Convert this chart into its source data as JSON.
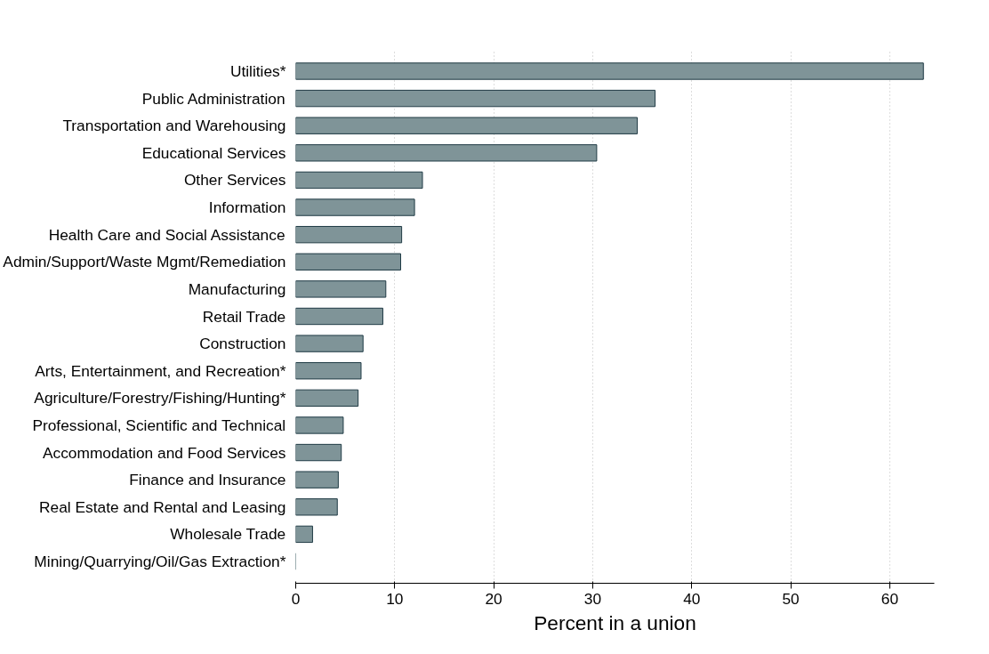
{
  "chart_data": {
    "type": "bar",
    "orientation": "horizontal",
    "xlabel": "Percent in a union",
    "categories": [
      "Utilities*",
      "Public Administration",
      "Transportation and Warehousing",
      "Educational Services",
      "Other Services",
      "Information",
      "Health Care and Social Assistance",
      "Admin/Support/Waste Mgmt/Remediation",
      "Manufacturing",
      "Retail Trade",
      "Construction",
      "Arts, Entertainment, and Recreation*",
      "Agriculture/Forestry/Fishing/Hunting*",
      "Professional, Scientific and Technical",
      "Accommodation and Food Services",
      "Finance and Insurance",
      "Real Estate and Rental and Leasing",
      "Wholesale Trade",
      "Mining/Quarrying/Oil/Gas Extraction*"
    ],
    "values": [
      63.4,
      36.3,
      34.5,
      30.4,
      12.8,
      12.0,
      10.7,
      10.6,
      9.1,
      8.8,
      6.8,
      6.6,
      6.3,
      4.8,
      4.6,
      4.3,
      4.2,
      1.7,
      0
    ],
    "color": "#7f9498",
    "xlim": [
      0,
      64.5
    ],
    "xticks": [
      0,
      10,
      20,
      30,
      40,
      50,
      60
    ],
    "grid": "x"
  }
}
